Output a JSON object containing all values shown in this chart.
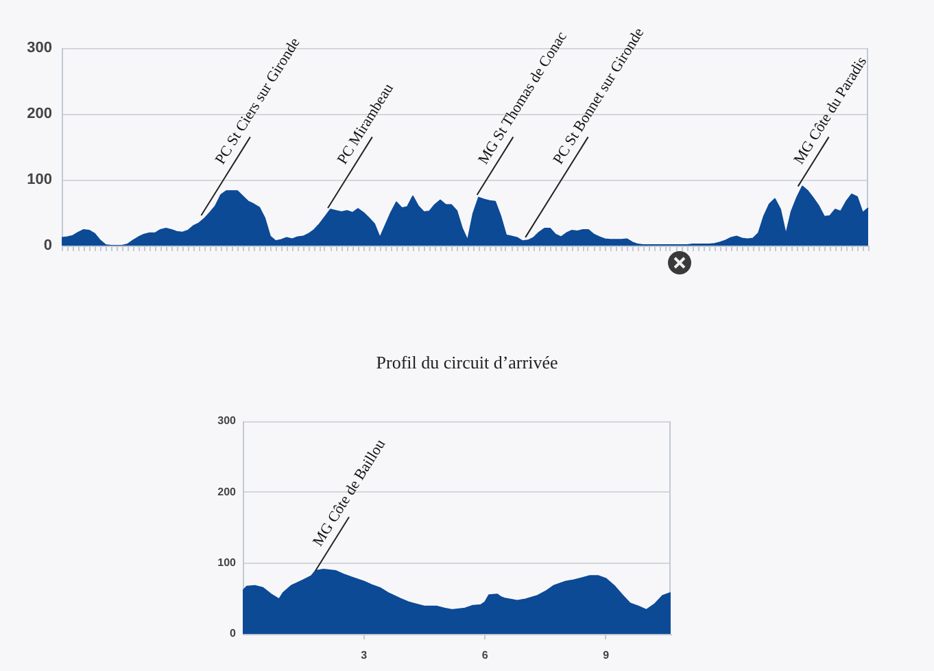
{
  "chart_data": [
    {
      "type": "area",
      "categories": [
        null,
        null,
        null,
        null,
        null,
        null,
        null,
        null,
        null,
        null,
        null,
        null,
        null,
        null,
        null,
        null,
        null,
        null,
        null,
        null,
        null,
        null,
        null,
        null,
        null,
        null,
        null,
        null,
        null,
        null,
        null,
        null,
        null,
        null,
        null,
        null,
        null,
        null,
        null,
        null,
        null,
        null,
        null,
        null,
        null,
        null,
        null,
        null,
        null,
        null,
        null,
        null,
        null,
        null,
        null,
        null,
        null,
        null,
        null,
        null,
        null,
        null,
        null,
        null,
        null,
        null,
        null,
        null,
        null,
        null,
        null,
        null,
        null,
        null,
        null,
        null,
        null,
        null,
        null,
        null,
        null,
        null,
        null,
        null,
        null,
        null,
        null,
        null,
        null,
        null,
        null,
        null,
        null,
        null,
        null,
        null,
        null,
        null,
        null,
        null,
        null,
        null,
        null,
        null,
        null,
        null,
        null,
        null,
        null,
        null,
        null,
        null,
        null,
        null,
        null,
        null,
        null,
        null,
        null,
        null,
        null,
        null,
        null,
        null,
        null,
        null,
        null,
        null,
        null,
        null,
        null,
        null,
        null,
        null,
        null,
        null,
        null,
        null,
        null,
        null,
        null,
        null,
        null,
        null,
        null,
        null,
        null,
        null
      ],
      "values": [
        12,
        13,
        15,
        20,
        24,
        23,
        18,
        8,
        1,
        0,
        0,
        0,
        2,
        8,
        13,
        17,
        19,
        19,
        24,
        26,
        24,
        21,
        20,
        23,
        30,
        34,
        41,
        50,
        60,
        77,
        83,
        83,
        83,
        75,
        67,
        63,
        58,
        42,
        14,
        7,
        9,
        12,
        10,
        13,
        14,
        18,
        24,
        33,
        44,
        55,
        53,
        51,
        53,
        50,
        56,
        50,
        42,
        33,
        12,
        31,
        50,
        66,
        57,
        59,
        75,
        60,
        51,
        52,
        62,
        69,
        62,
        62,
        53,
        26,
        8,
        49,
        73,
        70,
        68,
        67,
        45,
        16,
        14,
        12,
        7,
        8,
        12,
        20,
        26,
        26,
        17,
        13,
        19,
        23,
        22,
        24,
        24,
        17,
        13,
        10,
        9,
        9,
        9,
        10,
        5,
        2,
        1,
        1,
        1,
        1,
        1,
        1,
        1,
        1,
        1,
        2,
        2,
        2,
        2,
        3,
        5,
        8,
        12,
        14,
        11,
        10,
        11,
        19,
        45,
        63,
        71,
        55,
        17,
        52,
        73,
        90,
        83,
        72,
        60,
        44,
        45,
        55,
        52,
        67,
        78,
        74,
        50,
        57
      ],
      "color": "#0c4a96",
      "ylim": [
        0,
        300
      ],
      "yticks": [
        0,
        100,
        200,
        300
      ],
      "grid": "y",
      "tick_labels": "y",
      "annotations": [
        "PC St Ciers sur Gironde",
        "PC Mirambeau",
        "MG St Thomas de Conac",
        "PC St Bonnet sur Gironde",
        "MG Côte du Paradis"
      ]
    },
    {
      "type": "area",
      "title": "Profil du circuit d’arrivée",
      "x": [
        0,
        0.1,
        0.3,
        0.5,
        0.7,
        0.9,
        1.0,
        1.2,
        1.5,
        1.7,
        1.8,
        2.0,
        2.3,
        2.5,
        2.7,
        3.0,
        3.2,
        3.4,
        3.6,
        3.9,
        4.1,
        4.3,
        4.5,
        4.8,
        5.0,
        5.2,
        5.5,
        5.7,
        5.9,
        6.0,
        6.1,
        6.3,
        6.4,
        6.5,
        6.8,
        7.0,
        7.3,
        7.5,
        7.7,
        8.0,
        8.2,
        8.4,
        8.6,
        8.8,
        9.0,
        9.2,
        9.4,
        9.6,
        9.8,
        10.0,
        10.2,
        10.4,
        10.6
      ],
      "values": [
        61,
        67,
        68,
        65,
        56,
        49,
        58,
        68,
        76,
        82,
        89,
        91,
        89,
        84,
        80,
        74,
        69,
        65,
        58,
        50,
        45,
        42,
        39,
        39,
        36,
        34,
        36,
        40,
        41,
        45,
        55,
        56,
        52,
        50,
        47,
        49,
        54,
        60,
        68,
        74,
        76,
        79,
        82,
        82,
        78,
        68,
        55,
        43,
        39,
        34,
        42,
        54,
        58
      ],
      "color": "#0c4a96",
      "xlim": [
        0,
        10.6
      ],
      "xticks": [
        3,
        6,
        9
      ],
      "ylim": [
        0,
        300
      ],
      "yticks": [
        0,
        100,
        200,
        300
      ],
      "grid": "y",
      "annotations": [
        {
          "text": "MG Côte de Baillou",
          "x": 1.8,
          "y": 89
        }
      ]
    }
  ]
}
